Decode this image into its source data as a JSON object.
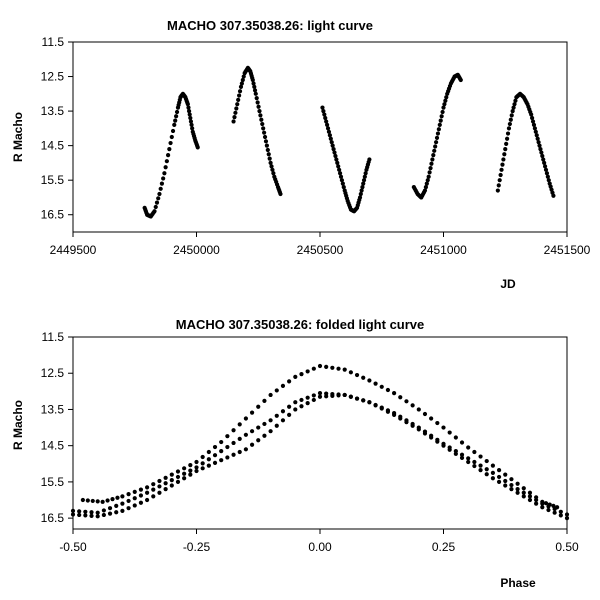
{
  "chart_data": [
    {
      "type": "scatter",
      "title": "MACHO 307.35038.26: light curve",
      "xlabel": "JD",
      "ylabel": "R Macho",
      "xlim": [
        2449500,
        2451500
      ],
      "ylim": [
        11.5,
        17.0
      ],
      "y_inverted": true,
      "grid": false,
      "xticks": [
        "2449500",
        "2450000",
        "2450500",
        "2451000",
        "2451500"
      ],
      "yticks": [
        "11.5",
        "12.5",
        "13.5",
        "14.5",
        "15.5",
        "16.5"
      ],
      "marker_color": "#000000",
      "segments": [
        {
          "x": [
            2449790,
            2449800,
            2449815,
            2449830,
            2449850,
            2449870,
            2449890,
            2449910,
            2449925,
            2449935,
            2449945,
            2449955,
            2449965,
            2449975,
            2449985,
            2449995,
            2450005
          ],
          "y": [
            16.3,
            16.5,
            16.55,
            16.4,
            15.9,
            15.3,
            14.6,
            13.9,
            13.4,
            13.1,
            13.0,
            13.1,
            13.3,
            13.7,
            14.1,
            14.35,
            14.55
          ]
        },
        {
          "x": [
            2450150,
            2450165,
            2450180,
            2450195,
            2450208,
            2450218,
            2450228,
            2450240,
            2450255,
            2450270,
            2450285,
            2450300,
            2450315,
            2450330,
            2450340
          ],
          "y": [
            13.8,
            13.3,
            12.8,
            12.4,
            12.25,
            12.35,
            12.6,
            13.0,
            13.5,
            14.0,
            14.5,
            15.0,
            15.4,
            15.7,
            15.9
          ]
        },
        {
          "x": [
            2450510,
            2450525,
            2450540,
            2450555,
            2450570,
            2450585,
            2450600,
            2450612,
            2450625,
            2450638,
            2450650,
            2450662,
            2450675,
            2450688,
            2450700
          ],
          "y": [
            13.4,
            13.8,
            14.2,
            14.6,
            15.0,
            15.4,
            15.8,
            16.1,
            16.35,
            16.4,
            16.3,
            16.0,
            15.6,
            15.2,
            14.9
          ]
        },
        {
          "x": [
            2450880,
            2450895,
            2450910,
            2450925,
            2450940,
            2450955,
            2450970,
            2450985,
            2451000,
            2451015,
            2451030,
            2451045,
            2451058,
            2451070
          ],
          "y": [
            15.7,
            15.9,
            16.0,
            15.8,
            15.4,
            14.9,
            14.4,
            13.9,
            13.4,
            13.0,
            12.7,
            12.5,
            12.45,
            12.6
          ]
        },
        {
          "x": [
            2451220,
            2451235,
            2451250,
            2451265,
            2451280,
            2451295,
            2451310,
            2451325,
            2451340,
            2451355,
            2451370,
            2451385,
            2451400,
            2451415,
            2451430,
            2451445
          ],
          "y": [
            15.8,
            15.2,
            14.6,
            14.0,
            13.5,
            13.1,
            13.0,
            13.1,
            13.3,
            13.6,
            14.0,
            14.4,
            14.8,
            15.2,
            15.6,
            15.95
          ]
        }
      ]
    },
    {
      "type": "scatter",
      "title": "MACHO 307.35038.26: folded light curve",
      "xlabel": "Phase",
      "ylabel": "R Macho",
      "xlim": [
        -0.5,
        0.5
      ],
      "ylim": [
        11.5,
        16.8
      ],
      "y_inverted": true,
      "grid": false,
      "xticks": [
        "-0.50",
        "-0.25",
        "0.00",
        "0.25",
        "0.50"
      ],
      "yticks": [
        "11.5",
        "12.5",
        "13.5",
        "14.5",
        "15.5",
        "16.5"
      ],
      "marker_color": "#000000",
      "branches": [
        {
          "x": [
            -0.5,
            -0.45,
            -0.4,
            -0.35,
            -0.3,
            -0.25,
            -0.2,
            -0.15,
            -0.1,
            -0.05,
            0.0,
            0.05,
            0.1,
            0.15,
            0.2,
            0.25,
            0.3,
            0.35,
            0.4,
            0.45,
            0.5
          ],
          "y": [
            16.4,
            16.45,
            16.3,
            16.0,
            15.6,
            15.2,
            14.9,
            14.6,
            14.1,
            13.5,
            13.15,
            13.1,
            13.3,
            13.65,
            14.05,
            14.5,
            14.95,
            15.4,
            15.8,
            16.2,
            16.5
          ]
        },
        {
          "x": [
            -0.5,
            -0.45,
            -0.4,
            -0.35,
            -0.3,
            -0.25,
            -0.2,
            -0.15,
            -0.1,
            -0.05,
            0.0,
            0.05,
            0.1,
            0.15,
            0.2,
            0.25,
            0.3,
            0.35,
            0.4,
            0.45,
            0.5
          ],
          "y": [
            16.3,
            16.35,
            16.1,
            15.8,
            15.45,
            15.1,
            14.65,
            14.2,
            13.8,
            13.3,
            13.05,
            13.1,
            13.3,
            13.6,
            14.0,
            14.45,
            14.85,
            15.25,
            15.7,
            16.1,
            16.4
          ]
        },
        {
          "x": [
            -0.48,
            -0.44,
            -0.4,
            -0.35,
            -0.3,
            -0.25,
            -0.2,
            -0.15,
            -0.1,
            -0.05,
            0.0,
            0.05,
            0.1,
            0.15,
            0.2,
            0.25,
            0.3,
            0.35,
            0.4,
            0.45,
            0.48
          ],
          "y": [
            16.0,
            16.05,
            15.9,
            15.65,
            15.3,
            14.95,
            14.4,
            13.75,
            13.1,
            12.6,
            12.3,
            12.4,
            12.7,
            13.05,
            13.5,
            14.0,
            14.55,
            15.05,
            15.55,
            16.05,
            16.2
          ]
        }
      ]
    }
  ]
}
